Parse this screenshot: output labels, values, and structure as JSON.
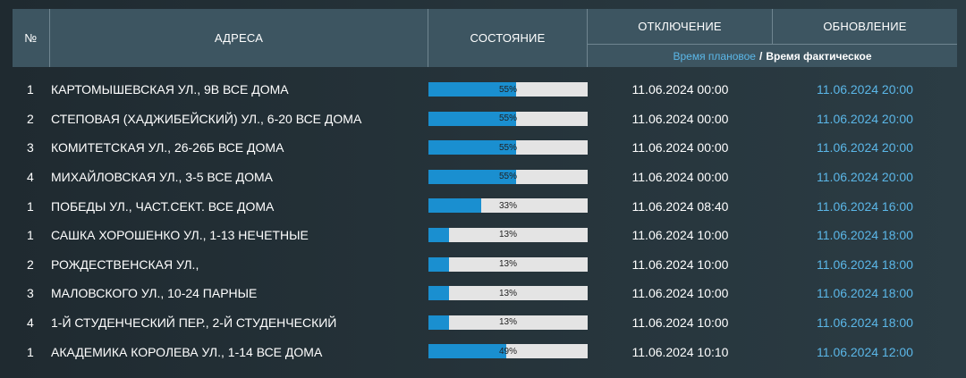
{
  "header": {
    "num": "№",
    "address": "АДРЕСА",
    "state": "СОСТОЯНИЕ",
    "shutdown": "ОТКЛЮЧЕНИЕ",
    "update": "ОБНОВЛЕНИЕ",
    "planned_label": "Время плановое",
    "separator": "/",
    "actual_label": "Время фактическое"
  },
  "colors": {
    "header_bg": "#3d5561",
    "bar_fill": "#1a8fd0",
    "bar_track": "#e4e4e4",
    "accent_blue": "#5bb7e8"
  },
  "rows": [
    {
      "num": "1",
      "address": "КАРТОМЫШЕВСКАЯ УЛ., 9В ВСЕ ДОМА",
      "progress": 55,
      "progress_label": "55%",
      "off": "11.06.2024 00:00",
      "upd": "11.06.2024 20:00"
    },
    {
      "num": "2",
      "address": "СТЕПОВАЯ (ХАДЖИБЕЙСКИЙ) УЛ., 6-20 ВСЕ ДОМА",
      "progress": 55,
      "progress_label": "55%",
      "off": "11.06.2024 00:00",
      "upd": "11.06.2024 20:00"
    },
    {
      "num": "3",
      "address": "КОМИТЕТСКАЯ УЛ., 26-26Б ВСЕ ДОМА",
      "progress": 55,
      "progress_label": "55%",
      "off": "11.06.2024 00:00",
      "upd": "11.06.2024 20:00"
    },
    {
      "num": "4",
      "address": "МИХАЙЛОВСКАЯ УЛ., 3-5 ВСЕ ДОМА",
      "progress": 55,
      "progress_label": "55%",
      "off": "11.06.2024 00:00",
      "upd": "11.06.2024 20:00"
    },
    {
      "num": "1",
      "address": "ПОБЕДЫ УЛ., ЧАСТ.СЕКТ. ВСЕ ДОМА",
      "progress": 33,
      "progress_label": "33%",
      "off": "11.06.2024 08:40",
      "upd": "11.06.2024 16:00"
    },
    {
      "num": "1",
      "address": "САШКА ХОРОШЕНКО УЛ., 1-13 НЕЧЕТНЫЕ",
      "progress": 13,
      "progress_label": "13%",
      "off": "11.06.2024 10:00",
      "upd": "11.06.2024 18:00"
    },
    {
      "num": "2",
      "address": "РОЖДЕСТВЕНСКАЯ УЛ.,",
      "progress": 13,
      "progress_label": "13%",
      "off": "11.06.2024 10:00",
      "upd": "11.06.2024 18:00"
    },
    {
      "num": "3",
      "address": "МАЛОВСКОГО УЛ., 10-24 ПАРНЫЕ",
      "progress": 13,
      "progress_label": "13%",
      "off": "11.06.2024 10:00",
      "upd": "11.06.2024 18:00"
    },
    {
      "num": "4",
      "address": "1-Й СТУДЕНЧЕСКИЙ ПЕР., 2-Й СТУДЕНЧЕСКИЙ",
      "progress": 13,
      "progress_label": "13%",
      "off": "11.06.2024 10:00",
      "upd": "11.06.2024 18:00"
    },
    {
      "num": "1",
      "address": "АКАДЕМИКА КОРОЛЕВА УЛ., 1-14 ВСЕ ДОМА",
      "progress": 49,
      "progress_label": "49%",
      "off": "11.06.2024 10:10",
      "upd": "11.06.2024 12:00"
    }
  ]
}
